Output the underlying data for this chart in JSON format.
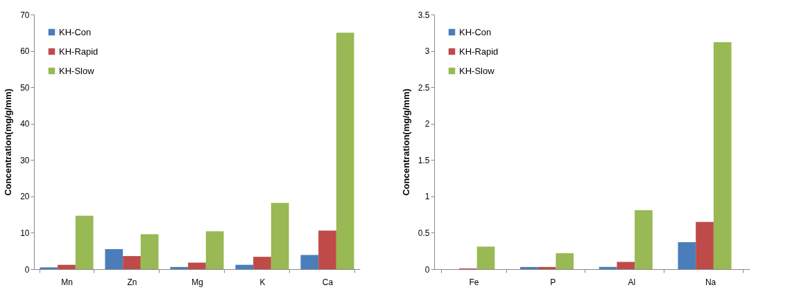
{
  "chart_data": [
    {
      "type": "bar",
      "ylabel": "Concentration(mg/g/mm)",
      "categories": [
        "Mn",
        "Zn",
        "Mg",
        "K",
        "Ca"
      ],
      "ylim": [
        0,
        70
      ],
      "yticks": [
        0,
        10,
        20,
        30,
        40,
        50,
        60,
        70
      ],
      "grid": false,
      "legend": "top left",
      "series": [
        {
          "name": "KH-Con",
          "color": "#4a7ebb",
          "values": [
            0.5,
            5.5,
            0.6,
            1.2,
            3.9
          ]
        },
        {
          "name": "KH-Rapid",
          "color": "#be4b48",
          "values": [
            1.2,
            3.6,
            1.8,
            3.4,
            10.6
          ]
        },
        {
          "name": "KH-Slow",
          "color": "#98b954",
          "values": [
            14.7,
            9.6,
            10.4,
            18.2,
            65
          ]
        }
      ]
    },
    {
      "type": "bar",
      "ylabel": "Concentration(mg/g/mm)",
      "categories": [
        "Fe",
        "P",
        "Al",
        "Na"
      ],
      "ylim": [
        0,
        3.5
      ],
      "yticks": [
        0,
        0.5,
        1,
        1.5,
        2,
        2.5,
        3,
        3.5
      ],
      "grid": false,
      "legend": "top left",
      "series": [
        {
          "name": "KH-Con",
          "color": "#4a7ebb",
          "values": [
            0,
            0.03,
            0.03,
            0.37
          ]
        },
        {
          "name": "KH-Rapid",
          "color": "#be4b48",
          "values": [
            0.01,
            0.03,
            0.1,
            0.65
          ]
        },
        {
          "name": "KH-Slow",
          "color": "#98b954",
          "values": [
            0.31,
            0.22,
            0.81,
            3.12
          ]
        }
      ]
    }
  ]
}
